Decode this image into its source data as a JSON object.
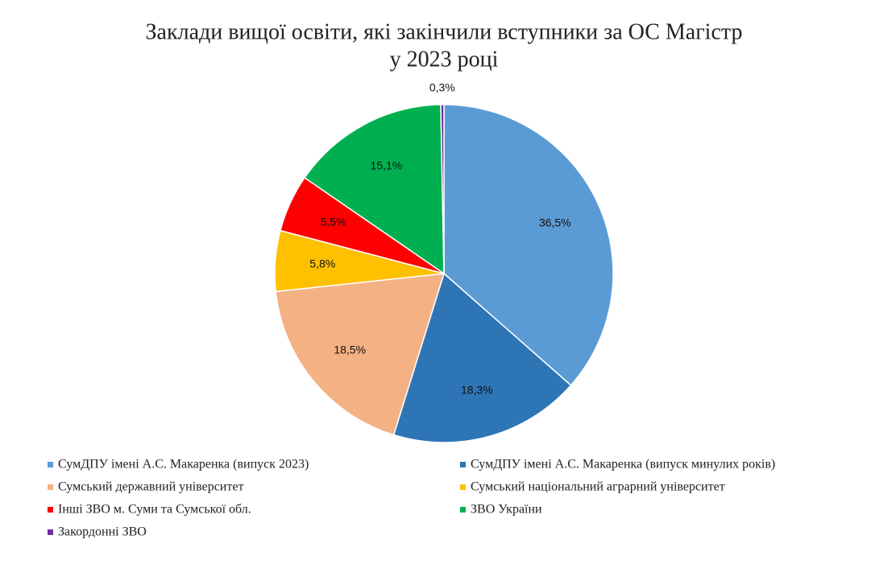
{
  "chart_data": {
    "type": "pie",
    "title": [
      "Заклади вищої освіти, які закінчили вступники за ОС Магістр",
      "у 2023 році"
    ],
    "categories": [
      "СумДПУ імені А.С. Макаренка (випуск 2023)",
      "СумДПУ імені А.С. Макаренка (випуск минулих років)",
      "Сумський державний університет",
      "Сумський національний аграрний університет",
      "Інші ЗВО м. Суми та Сумської обл.",
      "ЗВО України",
      "Закордонні ЗВО"
    ],
    "values": [
      36.5,
      18.3,
      18.5,
      5.8,
      5.5,
      15.1,
      0.3
    ],
    "value_labels": [
      "36,5%",
      "18,3%",
      "18,5%",
      "5,8%",
      "5,5%",
      "15,1%",
      "0,3%"
    ],
    "colors": [
      "#5b9bd5",
      "#2e75b6",
      "#f4b183",
      "#ffc000",
      "#ff0000",
      "#00b050",
      "#7030a0"
    ],
    "legend": "bottom"
  }
}
